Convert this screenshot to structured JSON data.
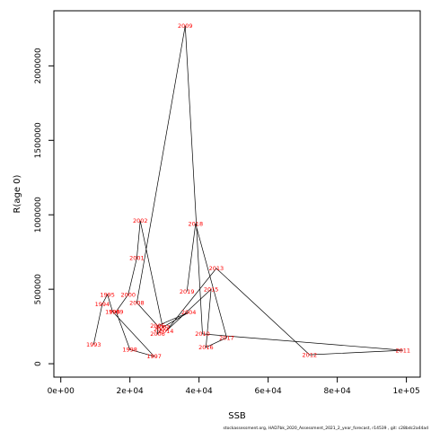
{
  "chart_data": {
    "type": "line",
    "xlabel": "SSB",
    "ylabel": "R(age 0)",
    "xlim": [
      -2000,
      104000
    ],
    "ylim": [
      -90000,
      2370000
    ],
    "x_ticks": [
      0,
      20000,
      40000,
      60000,
      80000,
      100000
    ],
    "x_tick_labels": [
      "0e+00",
      "2e+04",
      "4e+04",
      "6e+04",
      "8e+04",
      "1e+05"
    ],
    "y_ticks": [
      0,
      500000,
      1000000,
      1500000,
      2000000
    ],
    "y_tick_labels": [
      "0",
      "500000",
      "1000000",
      "1500000",
      "2000000"
    ],
    "grid": false,
    "line_color": "#000000",
    "label_color": "#ff0000",
    "points": [
      {
        "year": "1993",
        "x": 9500,
        "y": 130000
      },
      {
        "year": "1994",
        "x": 12000,
        "y": 400000
      },
      {
        "year": "1995",
        "x": 13500,
        "y": 465000
      },
      {
        "year": "1996",
        "x": 15000,
        "y": 350000
      },
      {
        "year": "1997",
        "x": 27000,
        "y": 50000
      },
      {
        "year": "1998",
        "x": 20000,
        "y": 95000
      },
      {
        "year": "1999",
        "x": 16000,
        "y": 350000
      },
      {
        "year": "2000",
        "x": 19500,
        "y": 465000
      },
      {
        "year": "2001",
        "x": 22000,
        "y": 710000
      },
      {
        "year": "2002",
        "x": 23000,
        "y": 960000
      },
      {
        "year": "2003",
        "x": 29500,
        "y": 245000
      },
      {
        "year": "2004",
        "x": 37000,
        "y": 345000
      },
      {
        "year": "2005",
        "x": 28000,
        "y": 255000
      },
      {
        "year": "2006",
        "x": 28000,
        "y": 200000
      },
      {
        "year": "2007",
        "x": 29000,
        "y": 230000
      },
      {
        "year": "2008",
        "x": 22000,
        "y": 410000
      },
      {
        "year": "2009",
        "x": 36000,
        "y": 2270000
      },
      {
        "year": "2010",
        "x": 41000,
        "y": 200000
      },
      {
        "year": "2011",
        "x": 99000,
        "y": 90000
      },
      {
        "year": "2012",
        "x": 72000,
        "y": 60000
      },
      {
        "year": "2013",
        "x": 45000,
        "y": 640000
      },
      {
        "year": "2014",
        "x": 30500,
        "y": 220000
      },
      {
        "year": "2015",
        "x": 43500,
        "y": 500000
      },
      {
        "year": "2016",
        "x": 42000,
        "y": 110000
      },
      {
        "year": "2017",
        "x": 48000,
        "y": 175000
      },
      {
        "year": "2018",
        "x": 39000,
        "y": 940000
      },
      {
        "year": "2019",
        "x": 36500,
        "y": 485000
      }
    ]
  },
  "footer": "stockassessment.org, HAD7bk_2020_Assessment_2021_2_year_forecast, r14539 , git: c28bdc2a44ad"
}
